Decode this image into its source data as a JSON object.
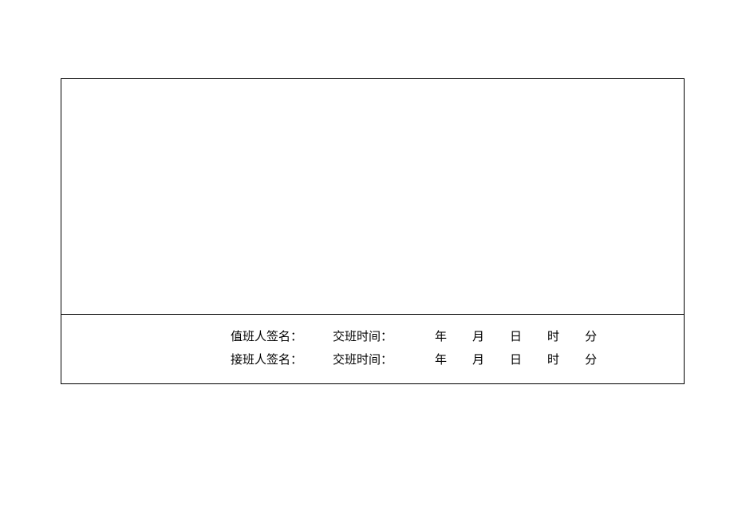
{
  "form": {
    "row1": {
      "signature_label": "值班人签名：",
      "time_label": "交班时间：",
      "units": {
        "year": "年",
        "month": "月",
        "day": "日",
        "hour": "时",
        "minute": "分"
      }
    },
    "row2": {
      "signature_label": "接班人签名：",
      "time_label": "交班时间：",
      "units": {
        "year": "年",
        "month": "月",
        "day": "日",
        "hour": "时",
        "minute": "分"
      }
    }
  },
  "styling": {
    "border_color": "#000000",
    "background_color": "#ffffff",
    "text_color": "#000000",
    "font_size": 15,
    "border_width": 1.5
  }
}
